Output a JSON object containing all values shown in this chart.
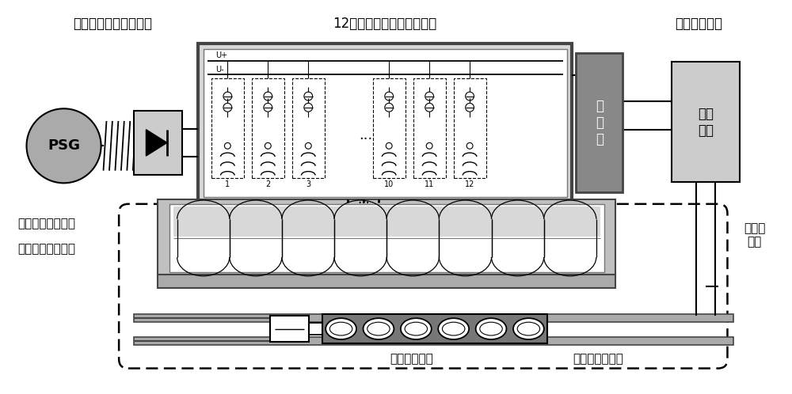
{
  "bg_color": "#ffffff",
  "label_psg_section": "脉冲发电机组及整流柜",
  "label_inverter_section": "12相变流器主电路及控制器",
  "label_excitation_section": "动子励磁电源",
  "label_psg": "PSG",
  "label_controller": "控\n制\n器",
  "label_dc_power": "直流\n电源",
  "label_stator": "双边直线电机定子",
  "label_sensor": "光电位置检测装置",
  "label_mover": "动子及模型车",
  "label_rail": "动子励磁供电轨",
  "label_low_pressure": "低气压\n管道",
  "colors": {
    "dark_gray": "#444444",
    "medium_gray": "#777777",
    "light_gray": "#bbbbbb",
    "lighter_gray": "#d8d8d8",
    "psg_fill": "#aaaaaa",
    "rect_fill": "#cccccc",
    "controller_fill": "#888888",
    "dc_fill": "#cccccc",
    "outer_box": "#999999",
    "inner_box_fill": "#f5f5f5",
    "stator_outer": "#c0c0c0",
    "stator_inner": "#e8e8e8",
    "stator_mid": "#d8d8d8",
    "track_gray": "#aaaaaa",
    "mover_dark": "#777777"
  },
  "layout": {
    "fig_w": 10.0,
    "fig_h": 4.98,
    "xmax": 10.0,
    "ymax": 4.98
  }
}
